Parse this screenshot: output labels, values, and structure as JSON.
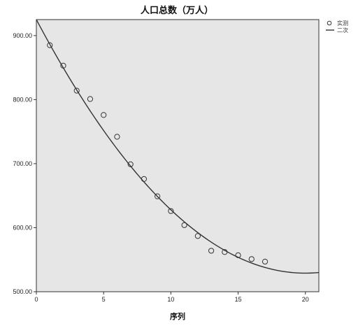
{
  "chart_data": {
    "type": "scatter",
    "title": "人口总数（万人）",
    "xlabel": "序列",
    "ylabel": "",
    "xlim": [
      0,
      21
    ],
    "ylim": [
      500,
      925
    ],
    "x_ticks": [
      0,
      5,
      10,
      15,
      20
    ],
    "x_tick_labels": [
      "0",
      "5",
      "10",
      "15",
      "20"
    ],
    "y_ticks": [
      500,
      600,
      700,
      800,
      900
    ],
    "y_tick_labels": [
      "500.00",
      "600.00",
      "700.00",
      "800.00",
      "900.00"
    ],
    "grid": false,
    "legend_position": "top-right",
    "series": [
      {
        "name": "实测",
        "kind": "scatter",
        "marker": "open-circle",
        "x": [
          1,
          2,
          3,
          4,
          5,
          6,
          7,
          8,
          9,
          10,
          11,
          12,
          13,
          14,
          15,
          16,
          17
        ],
        "y": [
          885,
          853,
          814,
          801,
          776,
          742,
          699,
          676,
          649,
          626,
          604,
          587,
          564,
          562,
          557,
          551,
          547
        ]
      },
      {
        "name": "二次",
        "kind": "line",
        "x": [
          0,
          20,
          21
        ],
        "y": [
          925,
          529,
          530
        ]
      }
    ],
    "colors": {
      "plot_background": "#e6e6e6",
      "marker_stroke": "#333333",
      "curve": "#333333"
    }
  }
}
